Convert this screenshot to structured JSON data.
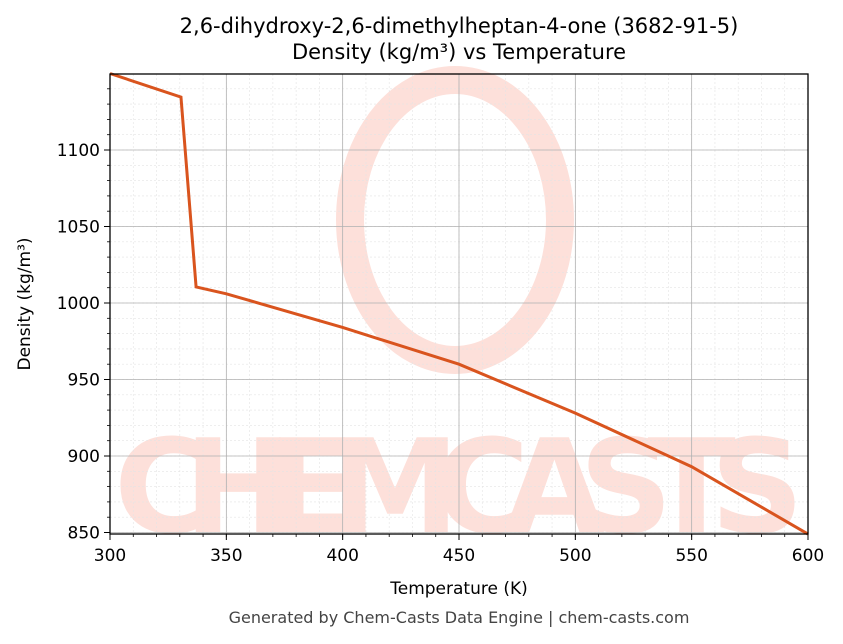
{
  "title_line1": "2,6-dihydroxy-2,6-dimethylheptan-4-one (3682-91-5)",
  "title_line2": "Density (kg/m³) vs Temperature",
  "footer": "Generated by Chem-Casts Data Engine | chem-casts.com",
  "watermark": "CHEMCASTS",
  "colors": {
    "line": "#d9541e",
    "watermark": "#fde0da",
    "grid": "#b0b0b0"
  },
  "chart_data": {
    "type": "line",
    "title": "2,6-dihydroxy-2,6-dimethylheptan-4-one (3682-91-5) Density (kg/m³) vs Temperature",
    "xlabel": "Temperature (K)",
    "ylabel": "Density (kg/m³)",
    "xlim": [
      300,
      600
    ],
    "ylim": [
      848,
      1150
    ],
    "xticks": [
      300,
      350,
      400,
      450,
      500,
      550,
      600
    ],
    "yticks": [
      850,
      900,
      950,
      1000,
      1050,
      1100
    ],
    "grid": true,
    "series": [
      {
        "name": "Density",
        "x": [
          300,
          330.5,
          337,
          350,
          400,
          450,
          500,
          550,
          600
        ],
        "y": [
          1150,
          1134.6,
          1010.5,
          1006,
          984,
          960,
          928,
          893,
          849
        ]
      }
    ]
  }
}
